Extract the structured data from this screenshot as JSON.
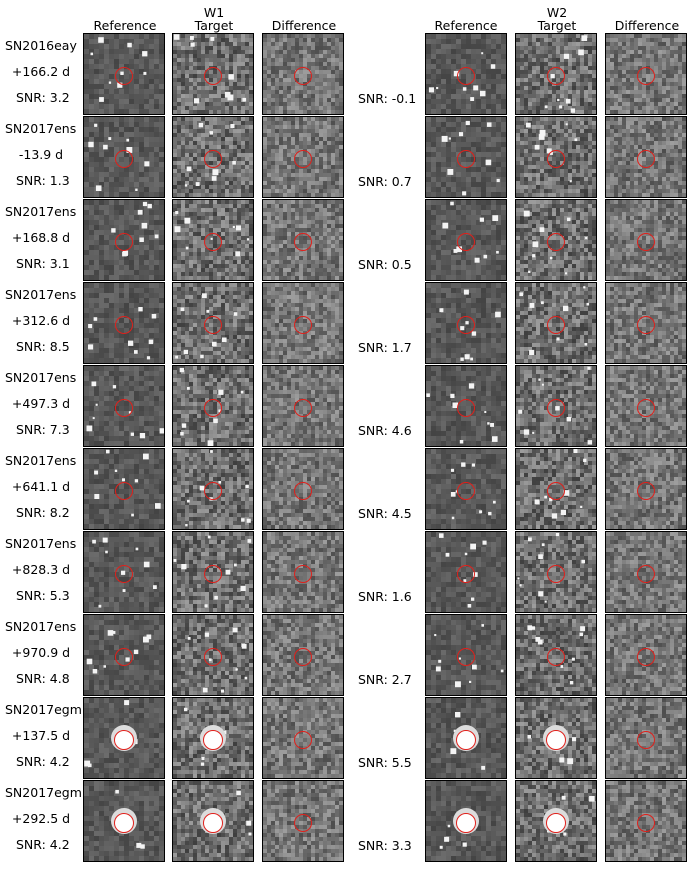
{
  "headers": {
    "w1": {
      "band": "W1",
      "columns": [
        "Reference",
        "Target",
        "Difference"
      ]
    },
    "w2": {
      "band": "W2",
      "columns": [
        "Reference",
        "Target",
        "Difference"
      ]
    }
  },
  "rows": [
    {
      "name": "SN2016eay",
      "phase": "+166.2 d",
      "snr_w1": "SNR: 3.2",
      "snr_w2": "SNR: -0.1"
    },
    {
      "name": "SN2017ens",
      "phase": "-13.9 d",
      "snr_w1": "SNR: 1.3",
      "snr_w2": "SNR: 0.7"
    },
    {
      "name": "SN2017ens",
      "phase": "+168.8 d",
      "snr_w1": "SNR: 3.1",
      "snr_w2": "SNR: 0.5"
    },
    {
      "name": "SN2017ens",
      "phase": "+312.6 d",
      "snr_w1": "SNR: 8.5",
      "snr_w2": "SNR: 1.7"
    },
    {
      "name": "SN2017ens",
      "phase": "+497.3 d",
      "snr_w1": "SNR: 7.3",
      "snr_w2": "SNR: 4.6"
    },
    {
      "name": "SN2017ens",
      "phase": "+641.1 d",
      "snr_w1": "SNR: 8.2",
      "snr_w2": "SNR: 4.5"
    },
    {
      "name": "SN2017ens",
      "phase": "+828.3 d",
      "snr_w1": "SNR: 5.3",
      "snr_w2": "SNR: 1.6"
    },
    {
      "name": "SN2017ens",
      "phase": "+970.9 d",
      "snr_w1": "SNR: 4.8",
      "snr_w2": "SNR: 2.7"
    },
    {
      "name": "SN2017egm",
      "phase": "+137.5 d",
      "snr_w1": "SNR: 4.2",
      "snr_w2": "SNR: 5.5"
    },
    {
      "name": "SN2017egm",
      "phase": "+292.5 d",
      "snr_w1": "SNR: 4.2",
      "snr_w2": "SNR: 3.3"
    }
  ],
  "colors": {
    "marker": "#e0201b",
    "background": "#6f6f6f"
  }
}
